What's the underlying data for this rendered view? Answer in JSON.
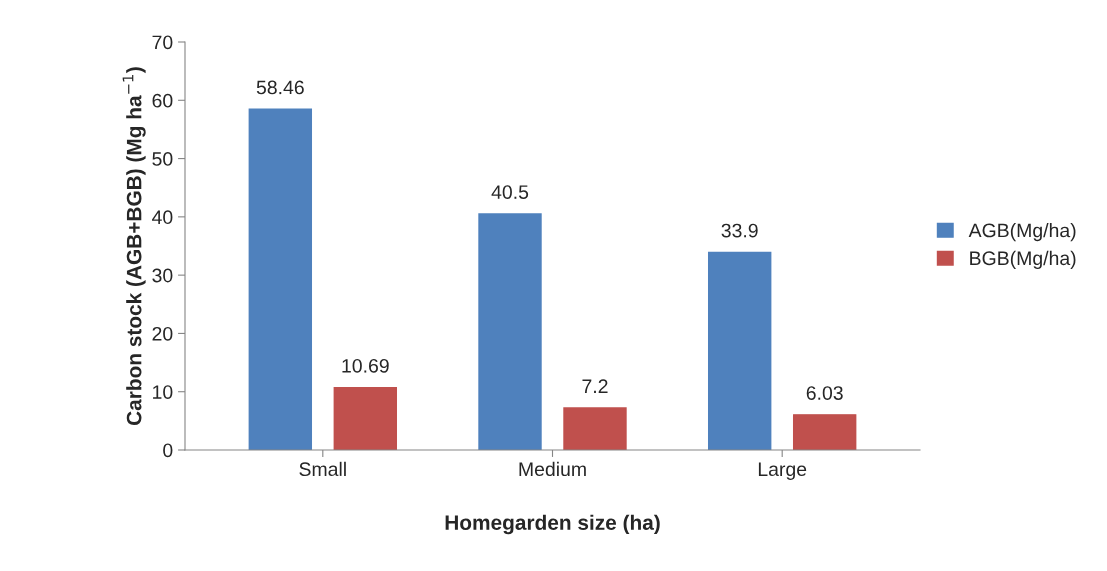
{
  "chart_data": {
    "type": "bar",
    "xlabel": "Homegarden size (ha)",
    "ylabel": "Carbon stock (AGB+BGB) (Mg ha$^{−1}$)",
    "categories": [
      "Small",
      "Medium",
      "Large"
    ],
    "series": [
      {
        "name": "AGB(Mg/ha)",
        "color": "#4f81bd",
        "values": [
          58.46,
          40.5,
          33.9
        ]
      },
      {
        "name": "BGB(Mg/ha)",
        "color": "#c0504d",
        "values": [
          10.69,
          7.2,
          6.03
        ]
      }
    ],
    "ylim": [
      0,
      70
    ],
    "yticks": [
      0,
      10,
      20,
      30,
      40,
      50,
      60,
      70
    ],
    "grid": false,
    "legend": "right",
    "data_labels": true
  }
}
